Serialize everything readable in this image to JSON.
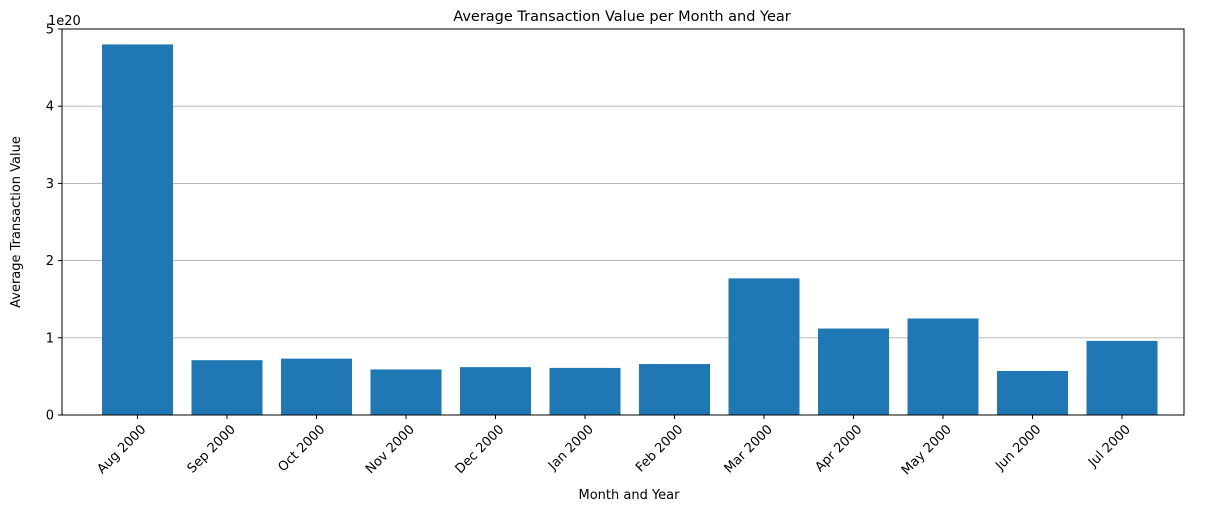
{
  "chart_data": {
    "type": "bar",
    "title": "Average Transaction Value per Month and Year",
    "xlabel": "Month and Year",
    "ylabel": "Average Transaction Value",
    "offset_label": "1e20",
    "categories": [
      "Aug 2000",
      "Sep 2000",
      "Oct 2000",
      "Nov 2000",
      "Dec 2000",
      "Jan 2000",
      "Feb 2000",
      "Mar 2000",
      "Apr 2000",
      "May 2000",
      "Jun 2000",
      "Jul 2000"
    ],
    "values": [
      4.8,
      0.71,
      0.73,
      0.59,
      0.62,
      0.61,
      0.66,
      1.77,
      1.12,
      1.25,
      0.57,
      0.96
    ],
    "value_multiplier": 1e+20,
    "ylim": [
      0,
      5
    ],
    "yticks": [
      0,
      1,
      2,
      3,
      4,
      5
    ],
    "ytick_labels": [
      "0",
      "1",
      "2",
      "3",
      "4",
      "5"
    ],
    "grid": "y-major",
    "bar_color": "#1f77b4",
    "grid_color": "#b0b0b0"
  }
}
